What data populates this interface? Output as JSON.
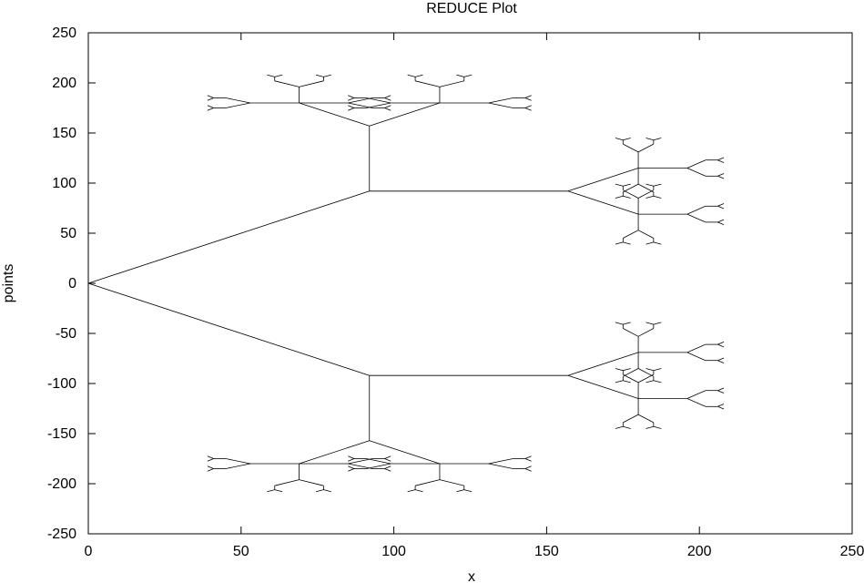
{
  "chart_data": {
    "type": "line",
    "title": "REDUCE Plot",
    "xlabel": "x",
    "ylabel": "points",
    "xlim": [
      0,
      250
    ],
    "ylim": [
      -250,
      250
    ],
    "x_ticks": [
      0,
      50,
      100,
      150,
      200,
      250
    ],
    "y_ticks": [
      250,
      200,
      150,
      100,
      50,
      0,
      -50,
      -100,
      -150,
      -200,
      -250
    ],
    "grid": false,
    "legend": "none",
    "description_of_data": "recursive fractal binary tree (H-tree style)",
    "root": {
      "x": 0,
      "y": 0
    },
    "first_split": {
      "x": 92,
      "y": 92
    },
    "line_color": "#000000"
  }
}
